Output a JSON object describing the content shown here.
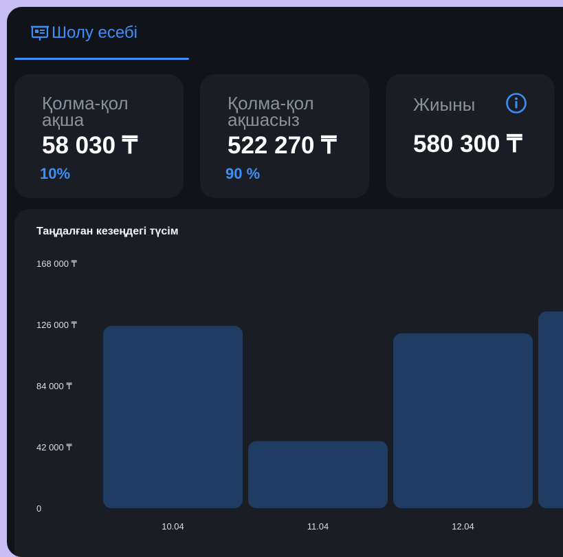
{
  "tab": {
    "label": "Шолу есебі",
    "icon": "presentation-chart-icon"
  },
  "cards": [
    {
      "title": "Қолма-қол ақша",
      "value": "58 030 ₸",
      "percent": "10%"
    },
    {
      "title": "Қолма-қол ақшасыз",
      "value": "522 270 ₸",
      "percent": "90 %"
    },
    {
      "title": "Жиыны",
      "value": "580 300 ₸",
      "icon": "info-icon"
    }
  ],
  "colors": {
    "accent": "#3d8ef7",
    "bar": "#1f3d63",
    "panel": "#1a1e24",
    "background": "#101418"
  },
  "chart_data": {
    "type": "bar",
    "title": "Таңдалған кезеңдегі түсім",
    "categories": [
      "10.04",
      "11.04",
      "12.04",
      ""
    ],
    "values": [
      125000,
      46000,
      120000,
      135000
    ],
    "ylim": [
      0,
      168000
    ],
    "y_ticks": [
      {
        "value": 168000,
        "label": "168 000 ₸"
      },
      {
        "value": 126000,
        "label": "126 000 ₸"
      },
      {
        "value": 84000,
        "label": "84 000 ₸"
      },
      {
        "value": 42000,
        "label": "42 000 ₸"
      },
      {
        "value": 0,
        "label": "0"
      }
    ],
    "grid": false,
    "xlabel": "",
    "ylabel": ""
  }
}
